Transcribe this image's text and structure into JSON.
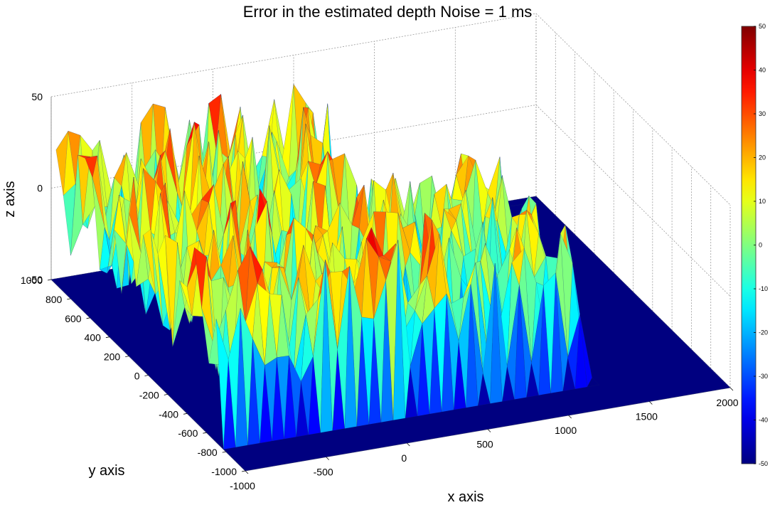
{
  "chart_data": {
    "type": "surface",
    "title": "Error in the estimated depth Noise = 1 ms",
    "xlabel": "x  axis",
    "ylabel": "y  axis",
    "zlabel": "z  axis",
    "xlim": [
      -1000,
      2000
    ],
    "ylim": [
      -1000,
      1000
    ],
    "zlim": [
      -50,
      50
    ],
    "x_ticks": [
      "-1000",
      "-500",
      "0",
      "500",
      "1000",
      "1500",
      "2000"
    ],
    "y_ticks": [
      "1000",
      "800",
      "600",
      "400",
      "200",
      "0",
      "-200",
      "-400",
      "-600",
      "-800",
      "-1000"
    ],
    "z_ticks": [
      "50",
      "0",
      "-50"
    ],
    "colorbar": {
      "min": -50,
      "max": 50,
      "ticks": [
        "50",
        "40",
        "30",
        "20",
        "10",
        "0",
        "-10",
        "-20",
        "-30",
        "-40",
        "-50"
      ],
      "colormap": "jet"
    },
    "grid": true,
    "surface_regions": [
      {
        "x_range": [
          -1000,
          500
        ],
        "y_range": [
          -700,
          1000
        ],
        "z_range": [
          -50,
          45
        ]
      },
      {
        "x_range": [
          500,
          1300
        ],
        "y_range": [
          -700,
          300
        ],
        "z_range": [
          -50,
          30
        ]
      }
    ],
    "floor_value": -50
  }
}
